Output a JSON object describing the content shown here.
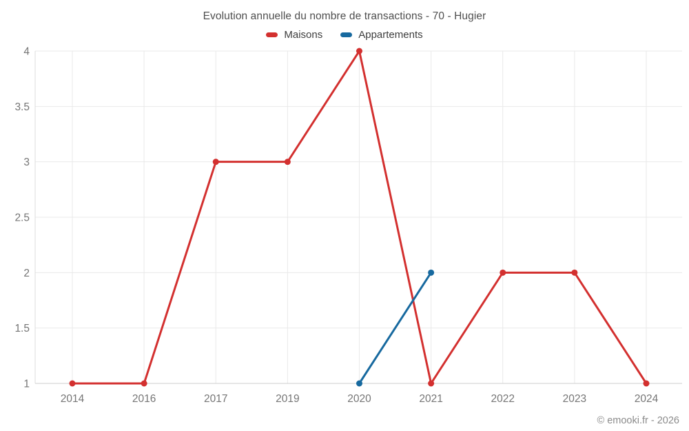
{
  "title": "Evolution annuelle du nombre de transactions - 70 - Hugier",
  "footer": "© emooki.fr - 2026",
  "colors": {
    "grid": "#e9e9e9",
    "axis_left": "#dcdcdc",
    "axis_bottom": "#cccccc",
    "tick_label": "#757575",
    "title_text": "#4e4e4e",
    "legend_text": "#3d3d3d",
    "footer_text": "#8b8b8b"
  },
  "chart_data": {
    "type": "line",
    "title": "Evolution annuelle du nombre de transactions - 70 - Hugier",
    "categories": [
      "2014",
      "2016",
      "2017",
      "2019",
      "2020",
      "2021",
      "2022",
      "2023",
      "2024"
    ],
    "series": [
      {
        "name": "Maisons",
        "color": "#d3302f",
        "values": [
          1,
          1,
          3,
          3,
          4,
          1,
          2,
          2,
          1
        ]
      },
      {
        "name": "Appartements",
        "color": "#17699f",
        "values": [
          null,
          null,
          null,
          null,
          1,
          2,
          null,
          null,
          null
        ]
      }
    ],
    "xlabel": "",
    "ylabel": "",
    "ylim": [
      1,
      4
    ],
    "yticks": [
      1,
      1.5,
      2,
      2.5,
      3,
      3.5,
      4
    ],
    "grid": true,
    "legend_position": "top",
    "marker_radius": 4.5,
    "line_width": 3
  }
}
